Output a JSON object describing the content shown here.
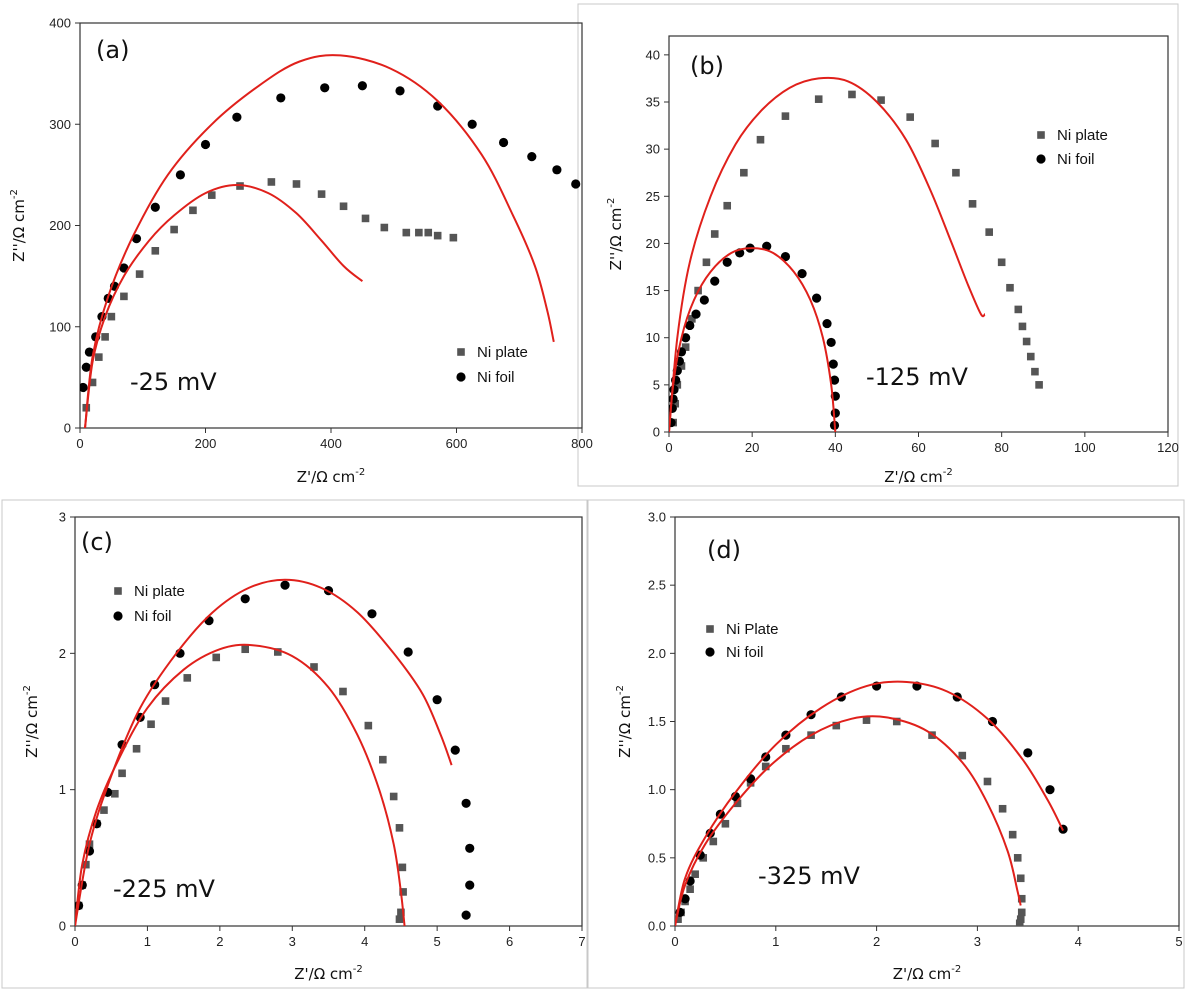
{
  "chart_data": [
    {
      "type": "scatter",
      "panel_label": "(a)",
      "annotation": "-25 mV",
      "xlabel": "Z'/Ω cm",
      "ylabel": "Z''/Ω cm",
      "unit_exponent": "-2",
      "xlim": [
        0,
        800
      ],
      "ylim": [
        0,
        400
      ],
      "xticks": [
        "0",
        "200",
        "400",
        "600",
        "800"
      ],
      "yticks": [
        "0",
        "100",
        "200",
        "300",
        "400"
      ],
      "legend": "bottom-right",
      "series": [
        {
          "name": "Ni plate",
          "marker": "square",
          "color": "#555555",
          "x": [
            10,
            20,
            30,
            40,
            50,
            70,
            95,
            120,
            150,
            180,
            210,
            255,
            305,
            345,
            385,
            420,
            455,
            485,
            520,
            540,
            555,
            570,
            595
          ],
          "y": [
            20,
            45,
            70,
            90,
            110,
            130,
            152,
            175,
            196,
            215,
            230,
            239,
            243,
            241,
            231,
            219,
            207,
            198,
            193,
            193,
            193,
            190,
            188
          ]
        },
        {
          "name": "Ni foil",
          "marker": "circle",
          "color": "#000000",
          "x": [
            5,
            10,
            15,
            25,
            35,
            45,
            55,
            70,
            90,
            120,
            160,
            200,
            250,
            320,
            390,
            450,
            510,
            570,
            625,
            675,
            720,
            760,
            790
          ],
          "y": [
            40,
            60,
            75,
            90,
            110,
            128,
            140,
            158,
            187,
            218,
            250,
            280,
            307,
            326,
            336,
            338,
            333,
            318,
            300,
            282,
            268,
            255,
            241
          ]
        }
      ],
      "fits": [
        {
          "x": [
            8,
            20,
            40,
            70,
            110,
            150,
            200,
            250,
            300,
            345,
            385,
            420,
            450
          ],
          "y": [
            0,
            65,
            110,
            150,
            185,
            210,
            232,
            240,
            232,
            212,
            185,
            160,
            145
          ]
        },
        {
          "x": [
            8,
            20,
            45,
            85,
            140,
            210,
            285,
            350,
            415,
            495,
            570,
            640,
            690,
            725,
            745,
            755
          ],
          "y": [
            0,
            70,
            130,
            190,
            250,
            300,
            338,
            362,
            368,
            355,
            323,
            270,
            210,
            160,
            115,
            85
          ]
        }
      ]
    },
    {
      "type": "scatter",
      "panel_label": "(b)",
      "annotation": "-125 mV",
      "xlabel": "Z'/Ω cm",
      "ylabel": "Z''/Ω cm",
      "unit_exponent": "-2",
      "xlim": [
        0,
        120
      ],
      "ylim": [
        0,
        42
      ],
      "xticks": [
        "0",
        "20",
        "40",
        "60",
        "80",
        "100",
        "120"
      ],
      "yticks": [
        "0",
        "5",
        "10",
        "15",
        "20",
        "25",
        "30",
        "35",
        "40"
      ],
      "legend": "top-right",
      "series": [
        {
          "name": "Ni plate",
          "marker": "square",
          "color": "#555555",
          "x": [
            1,
            1.5,
            2,
            3,
            4,
            5.5,
            7,
            9,
            11,
            14,
            18,
            22,
            28,
            36,
            44,
            51,
            58,
            64,
            69,
            73,
            77,
            80,
            82,
            84,
            85,
            86,
            87,
            88,
            89
          ],
          "y": [
            1,
            3,
            5,
            7,
            9,
            12,
            15,
            18,
            21,
            24,
            27.5,
            31,
            33.5,
            35.3,
            35.8,
            35.2,
            33.4,
            30.6,
            27.5,
            24.2,
            21.2,
            18,
            15.3,
            13,
            11.2,
            9.6,
            8,
            6.4,
            5
          ]
        },
        {
          "name": "Ni foil",
          "marker": "circle",
          "color": "#000000",
          "x": [
            0.5,
            0.8,
            1,
            1.2,
            1.6,
            2,
            2.5,
            3,
            4,
            5,
            6.5,
            8.5,
            11,
            14,
            17,
            19.5,
            23.5,
            28,
            32,
            35.5,
            38,
            39,
            39.5,
            39.8,
            40,
            40,
            39.8
          ],
          "y": [
            1,
            2.5,
            3.5,
            4.5,
            5.5,
            6.5,
            7.5,
            8.5,
            10,
            11.3,
            12.5,
            14,
            16,
            18,
            19,
            19.5,
            19.7,
            18.6,
            16.8,
            14.2,
            11.5,
            9.5,
            7.2,
            5.5,
            3.8,
            2,
            0.7
          ]
        }
      ],
      "fits": [
        {
          "x": [
            0,
            2,
            5,
            10,
            16,
            22,
            29,
            36,
            43,
            50,
            57,
            63,
            68,
            72,
            75,
            76
          ],
          "y": [
            0,
            10,
            18,
            25,
            30.5,
            34,
            36.5,
            37.5,
            37.2,
            35,
            31,
            25.5,
            20,
            15.5,
            12.5,
            12.5
          ]
        },
        {
          "x": [
            0,
            1,
            3,
            6,
            10,
            15,
            20,
            25,
            30,
            34,
            37,
            39,
            40
          ],
          "y": [
            0,
            5,
            10,
            14,
            17,
            19,
            19.5,
            19,
            17,
            14,
            10,
            5,
            0
          ]
        }
      ]
    },
    {
      "type": "scatter",
      "panel_label": "(c)",
      "annotation": "-225 mV",
      "xlabel": "Z'/Ω cm",
      "ylabel": "Z''/Ω cm",
      "unit_exponent": "-2",
      "xlim": [
        0,
        7
      ],
      "ylim": [
        0,
        3
      ],
      "xticks": [
        "0",
        "1",
        "2",
        "3",
        "4",
        "5",
        "6",
        "7"
      ],
      "yticks": [
        "0",
        "1",
        "2",
        "3"
      ],
      "legend": "top-left",
      "series": [
        {
          "name": "Ni plate",
          "marker": "square",
          "color": "#555555",
          "x": [
            0.05,
            0.1,
            0.15,
            0.2,
            0.3,
            0.4,
            0.55,
            0.65,
            0.85,
            1.05,
            1.25,
            1.55,
            1.95,
            2.35,
            2.8,
            3.3,
            3.7,
            4.05,
            4.25,
            4.4,
            4.48,
            4.52,
            4.53,
            4.5,
            4.48
          ],
          "y": [
            0.15,
            0.3,
            0.45,
            0.6,
            0.75,
            0.85,
            0.97,
            1.12,
            1.3,
            1.48,
            1.65,
            1.82,
            1.97,
            2.03,
            2.01,
            1.9,
            1.72,
            1.47,
            1.22,
            0.95,
            0.72,
            0.43,
            0.25,
            0.1,
            0.05
          ]
        },
        {
          "name": "Ni foil",
          "marker": "circle",
          "color": "#000000",
          "x": [
            0.05,
            0.1,
            0.2,
            0.3,
            0.45,
            0.65,
            0.9,
            1.1,
            1.45,
            1.85,
            2.35,
            2.9,
            3.5,
            4.1,
            4.6,
            5.0,
            5.25,
            5.4,
            5.45,
            5.45,
            5.4
          ],
          "y": [
            0.15,
            0.3,
            0.55,
            0.75,
            0.98,
            1.33,
            1.53,
            1.77,
            2.0,
            2.24,
            2.4,
            2.5,
            2.46,
            2.29,
            2.01,
            1.66,
            1.29,
            0.9,
            0.57,
            0.3,
            0.08
          ]
        }
      ],
      "fits": [
        {
          "x": [
            0,
            0.1,
            0.3,
            0.6,
            1.0,
            1.5,
            2.0,
            2.45,
            3.0,
            3.5,
            3.9,
            4.2,
            4.4,
            4.5,
            4.55
          ],
          "y": [
            0,
            0.45,
            0.85,
            1.22,
            1.6,
            1.88,
            2.03,
            2.06,
            1.98,
            1.75,
            1.4,
            1.0,
            0.6,
            0.25,
            0
          ]
        },
        {
          "x": [
            0,
            0.2,
            0.5,
            0.9,
            1.4,
            1.9,
            2.4,
            2.9,
            3.4,
            3.9,
            4.4,
            4.8,
            5.05,
            5.2
          ],
          "y": [
            0,
            0.6,
            1.1,
            1.6,
            2.0,
            2.3,
            2.48,
            2.54,
            2.48,
            2.3,
            2.0,
            1.7,
            1.4,
            1.18
          ]
        }
      ]
    },
    {
      "type": "scatter",
      "panel_label": "(d)",
      "annotation": "-325 mV",
      "xlabel": "Z'/Ω cm",
      "ylabel": "Z''/Ω cm",
      "unit_exponent": "-2",
      "xlim": [
        0,
        5
      ],
      "ylim": [
        0,
        3.0
      ],
      "xticks": [
        "0",
        "1",
        "2",
        "3",
        "4",
        "5"
      ],
      "yticks": [
        "0.0",
        "0.5",
        "1.0",
        "1.5",
        "2.0",
        "2.5",
        "3.0"
      ],
      "legend": "top-left",
      "series": [
        {
          "name": "Ni Plate",
          "marker": "square",
          "color": "#555555",
          "x": [
            0.03,
            0.06,
            0.1,
            0.15,
            0.2,
            0.28,
            0.38,
            0.5,
            0.62,
            0.75,
            0.9,
            1.1,
            1.35,
            1.6,
            1.9,
            2.2,
            2.55,
            2.85,
            3.1,
            3.25,
            3.35,
            3.4,
            3.43,
            3.44,
            3.44,
            3.43,
            3.42
          ],
          "y": [
            0.05,
            0.1,
            0.18,
            0.27,
            0.38,
            0.5,
            0.62,
            0.75,
            0.9,
            1.05,
            1.17,
            1.3,
            1.4,
            1.47,
            1.51,
            1.5,
            1.4,
            1.25,
            1.06,
            0.86,
            0.67,
            0.5,
            0.35,
            0.2,
            0.1,
            0.05,
            0.02
          ]
        },
        {
          "name": "Ni foil",
          "marker": "circle",
          "color": "#000000",
          "x": [
            0.05,
            0.1,
            0.15,
            0.25,
            0.35,
            0.45,
            0.6,
            0.75,
            0.9,
            1.1,
            1.35,
            1.65,
            2.0,
            2.4,
            2.8,
            3.15,
            3.5,
            3.72,
            3.85
          ],
          "y": [
            0.1,
            0.2,
            0.33,
            0.52,
            0.68,
            0.82,
            0.95,
            1.08,
            1.24,
            1.4,
            1.55,
            1.68,
            1.76,
            1.76,
            1.68,
            1.5,
            1.27,
            1.0,
            0.71
          ]
        }
      ],
      "fits": [
        {
          "x": [
            0,
            0.1,
            0.3,
            0.6,
            0.95,
            1.35,
            1.75,
            2.1,
            2.5,
            2.85,
            3.1,
            3.3,
            3.4,
            3.43
          ],
          "y": [
            0,
            0.3,
            0.6,
            0.9,
            1.18,
            1.4,
            1.52,
            1.53,
            1.43,
            1.2,
            0.9,
            0.55,
            0.25,
            0.15
          ]
        },
        {
          "x": [
            0,
            0.1,
            0.3,
            0.6,
            1.0,
            1.45,
            1.9,
            2.3,
            2.7,
            3.1,
            3.45,
            3.7,
            3.85
          ],
          "y": [
            0,
            0.35,
            0.65,
            0.98,
            1.33,
            1.6,
            1.76,
            1.79,
            1.72,
            1.52,
            1.22,
            0.92,
            0.7
          ]
        }
      ]
    }
  ]
}
